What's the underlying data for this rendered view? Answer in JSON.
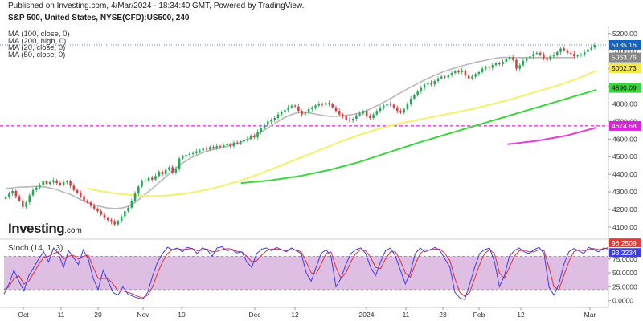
{
  "header": {
    "published": "Published on Investing.com, 4/Mar/2024 - 18:34:40 GMT, Powered by TradingView.",
    "symbol": "S&P 500, United States, NYSE(CFD):US500, 240"
  },
  "legend": {
    "items": [
      "MA (100, close, 0)",
      "MA (200, high, 0)",
      "MA (20, close, 0)",
      "MA (50, close, 0)"
    ]
  },
  "brand": {
    "name": "Investing",
    "suffix": ".com"
  },
  "stoch": {
    "label": "Stoch (14, 1, 3)"
  },
  "colors": {
    "up": "#22ab55",
    "down": "#e03a3a",
    "ma20": "#b8b8b8",
    "ma50": "#f5f06a",
    "ma100": "#3bd63b",
    "ma200": "#e040e0",
    "hline": "#e020e0",
    "k": "#3c3cf0",
    "d": "#e03030",
    "stoch_band": "#d9b3de"
  },
  "chart_data": [
    {
      "type": "candlestick",
      "x_tick_labels": [
        "Oct",
        "11",
        "20",
        "Nov",
        "10",
        "Dec",
        "12",
        "2024",
        "11",
        "23",
        "Feb",
        "12",
        "Mar"
      ],
      "y_tick_labels": [
        "4100.00",
        "4200.00",
        "4300.00",
        "4400.00",
        "4500.00",
        "4600.00",
        "4700.00",
        "4800.00",
        "4900.00",
        "5000.00",
        "5100.00",
        "5200.00"
      ],
      "ylim": [
        4040,
        5240
      ],
      "price_badges": [
        {
          "value": "5135.16",
          "color": "#1565c0"
        },
        {
          "value": "5063.76",
          "color": "#888888"
        },
        {
          "value": "5002.73",
          "color": "#f5e94a"
        },
        {
          "value": "4890.09",
          "color": "#3bd63b"
        },
        {
          "value": "4674.68",
          "color": "#e020e0"
        }
      ],
      "horizontal_level": 4674.68,
      "close": [
        4270,
        4290,
        4305,
        4275,
        4250,
        4215,
        4240,
        4280,
        4310,
        4325,
        4340,
        4360,
        4345,
        4355,
        4365,
        4350,
        4340,
        4355,
        4360,
        4335,
        4310,
        4295,
        4275,
        4250,
        4240,
        4220,
        4205,
        4190,
        4170,
        4150,
        4140,
        4130,
        4115,
        4135,
        4160,
        4190,
        4210,
        4250,
        4290,
        4330,
        4360,
        4365,
        4380,
        4370,
        4390,
        4415,
        4400,
        4425,
        4440,
        4410,
        4430,
        4490,
        4500,
        4510,
        4515,
        4520,
        4530,
        4535,
        4545,
        4540,
        4555,
        4550,
        4560,
        4555,
        4565,
        4570,
        4560,
        4580,
        4575,
        4585,
        4595,
        4600,
        4620,
        4610,
        4640,
        4660,
        4680,
        4700,
        4710,
        4720,
        4740,
        4755,
        4765,
        4780,
        4790,
        4785,
        4760,
        4740,
        4750,
        4770,
        4780,
        4790,
        4800,
        4795,
        4805,
        4800,
        4780,
        4760,
        4740,
        4730,
        4710,
        4705,
        4715,
        4735,
        4745,
        4760,
        4730,
        4720,
        4740,
        4760,
        4780,
        4790,
        4800,
        4795,
        4780,
        4760,
        4750,
        4770,
        4800,
        4830,
        4850,
        4870,
        4890,
        4910,
        4920,
        4910,
        4930,
        4945,
        4955,
        4950,
        4965,
        4975,
        4985,
        4980,
        4990,
        4960,
        4945,
        4955,
        4970,
        4980,
        5000,
        5010,
        5005,
        5020,
        5030,
        5025,
        5040,
        5055,
        5065,
        5050,
        5000,
        5020,
        5045,
        5060,
        5070,
        5085,
        5090,
        5080,
        5060,
        5050,
        5070,
        5080,
        5095,
        5115,
        5105,
        5090,
        5085,
        5070,
        5075,
        5080,
        5095,
        5110,
        5120,
        5135
      ],
      "ma20": [
        4320,
        4320,
        4322,
        4325,
        4326,
        4327,
        4328,
        4329,
        4330,
        4331,
        4330,
        4328,
        4326,
        4322,
        4318,
        4312,
        4305,
        4298,
        4292,
        4285,
        4276,
        4266,
        4256,
        4247,
        4240,
        4233,
        4226,
        4220,
        4216,
        4212,
        4208,
        4206,
        4205,
        4206,
        4208,
        4212,
        4218,
        4228,
        4240,
        4255,
        4270,
        4286,
        4302,
        4318,
        4335,
        4352,
        4368,
        4385,
        4402,
        4418,
        4434,
        4450,
        4464,
        4476,
        4488,
        4498,
        4508,
        4516,
        4524,
        4530,
        4536,
        4541,
        4545,
        4550,
        4554,
        4559,
        4564,
        4569,
        4575,
        4582,
        4590,
        4598,
        4607,
        4617,
        4628,
        4640,
        4652,
        4664,
        4676,
        4688,
        4700,
        4712,
        4722,
        4732,
        4740,
        4746,
        4750,
        4752,
        4752,
        4750,
        4746,
        4742,
        4738,
        4735,
        4732,
        4730,
        4729,
        4730,
        4731,
        4733,
        4735,
        4737,
        4740,
        4744,
        4749,
        4755,
        4762,
        4770,
        4779,
        4789,
        4799,
        4809,
        4819,
        4830,
        4841,
        4852,
        4863,
        4874,
        4885,
        4895,
        4905,
        4915,
        4925,
        4935,
        4944,
        4953,
        4962,
        4970,
        4978,
        4985,
        4992,
        4998,
        5004,
        5010,
        5016,
        5021,
        5026,
        5031,
        5036,
        5040,
        5044,
        5048,
        5052,
        5056,
        5060,
        5063,
        5064,
        5064,
        5063,
        5063,
        5063,
        5063,
        5063,
        5063,
        5063,
        5063,
        5063,
        5063,
        5063,
        5063,
        5063,
        5063,
        5063,
        5063,
        5063,
        5063,
        5063,
        5063
      ],
      "ma50_x": [
        0.14,
        0.16,
        0.19,
        0.22,
        0.25,
        0.28,
        0.31,
        0.34,
        0.37,
        0.4,
        0.43,
        0.46,
        0.49,
        0.52,
        0.55,
        0.58,
        0.61,
        0.64,
        0.67,
        0.7,
        0.73,
        0.76,
        0.79,
        0.82,
        0.85,
        0.88,
        0.91,
        0.94,
        0.97,
        1.0
      ],
      "ma50": [
        4320,
        4305,
        4290,
        4280,
        4275,
        4280,
        4292,
        4310,
        4335,
        4365,
        4400,
        4440,
        4480,
        4520,
        4560,
        4600,
        4635,
        4665,
        4690,
        4710,
        4730,
        4750,
        4770,
        4795,
        4820,
        4850,
        4880,
        4910,
        4945,
        4990
      ],
      "ma100_x": [
        0.4,
        0.45,
        0.5,
        0.55,
        0.6,
        0.65,
        0.7,
        0.75,
        0.8,
        0.85,
        0.9,
        0.95,
        1.0
      ],
      "ma100": [
        4350,
        4365,
        4390,
        4425,
        4470,
        4525,
        4580,
        4630,
        4680,
        4730,
        4780,
        4830,
        4880
      ],
      "ma200_x": [
        0.85,
        0.9,
        0.95,
        1.0
      ],
      "ma200": [
        4570,
        4590,
        4620,
        4665
      ]
    },
    {
      "type": "line",
      "name": "Stoch (14, 1, 3)",
      "y_tick_labels": [
        "0.0000",
        "25.0000",
        "50.0000",
        "75.0000"
      ],
      "ylim": [
        -12,
        108
      ],
      "levels": [
        20,
        80
      ],
      "value_badges": [
        {
          "value": "96.2509",
          "color": "#e53935"
        },
        {
          "value": "93.2234",
          "color": "#3c3cf0"
        }
      ],
      "k": [
        12,
        30,
        55,
        35,
        18,
        45,
        60,
        75,
        88,
        70,
        95,
        85,
        60,
        90,
        78,
        65,
        92,
        75,
        40,
        20,
        55,
        35,
        15,
        10,
        25,
        12,
        8,
        5,
        3,
        15,
        45,
        70,
        85,
        96,
        92,
        95,
        88,
        96,
        94,
        85,
        95,
        92,
        80,
        95,
        97,
        90,
        92,
        86,
        88,
        70,
        60,
        85,
        93,
        95,
        90,
        96,
        92,
        88,
        95,
        90,
        85,
        50,
        35,
        60,
        85,
        92,
        80,
        25,
        40,
        65,
        85,
        92,
        95,
        85,
        60,
        45,
        70,
        90,
        95,
        80,
        55,
        30,
        50,
        85,
        95,
        88,
        92,
        96,
        90,
        75,
        60,
        15,
        5,
        2,
        30,
        60,
        85,
        92,
        95,
        70,
        25,
        45,
        80,
        90,
        95,
        88,
        85,
        92,
        96,
        85,
        25,
        10,
        30,
        65,
        88,
        94,
        90,
        85,
        96,
        92,
        88,
        95,
        93
      ],
      "d": [
        20,
        25,
        40,
        45,
        30,
        35,
        50,
        65,
        78,
        80,
        85,
        88,
        75,
        80,
        82,
        75,
        80,
        82,
        60,
        40,
        40,
        40,
        30,
        18,
        18,
        15,
        12,
        8,
        5,
        10,
        25,
        50,
        70,
        85,
        92,
        94,
        92,
        93,
        94,
        90,
        91,
        93,
        88,
        89,
        92,
        94,
        93,
        89,
        88,
        80,
        70,
        72,
        82,
        90,
        93,
        93,
        92,
        90,
        92,
        91,
        88,
        70,
        50,
        48,
        65,
        85,
        88,
        60,
        40,
        50,
        70,
        85,
        92,
        90,
        78,
        60,
        58,
        75,
        88,
        88,
        72,
        50,
        42,
        65,
        85,
        92,
        91,
        93,
        93,
        85,
        72,
        40,
        15,
        8,
        15,
        40,
        65,
        85,
        92,
        85,
        50,
        40,
        60,
        80,
        90,
        91,
        88,
        88,
        92,
        90,
        60,
        25,
        20,
        45,
        70,
        88,
        92,
        90,
        92,
        94,
        92,
        93,
        96
      ]
    }
  ]
}
